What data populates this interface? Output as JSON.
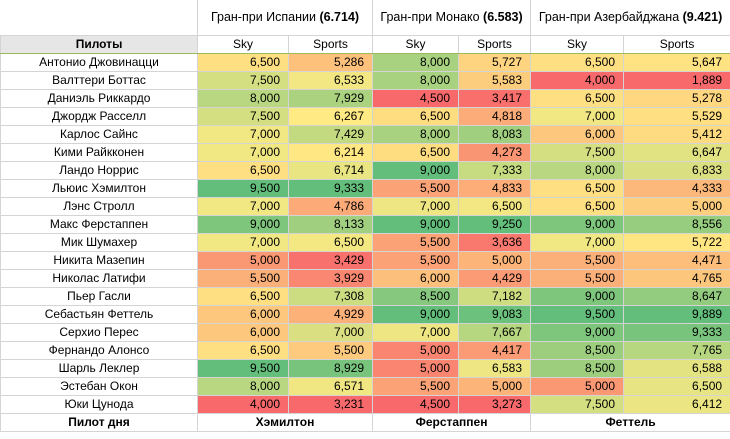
{
  "table": {
    "corner": "Пилоты",
    "races": [
      {
        "name": "Гран-при Испании",
        "score": "(6.714)"
      },
      {
        "name": "Гран-при Монако",
        "score": "(6.583)"
      },
      {
        "name": "Гран-при Азербайджана",
        "score": "(9.421)"
      }
    ],
    "subheaders": [
      "Sky",
      "Sports",
      "Sky",
      "Sports",
      "Sky",
      "Sports"
    ],
    "rows": [
      [
        "Антонио Джовинацци",
        "6,500",
        "5,286",
        "8,000",
        "5,727",
        "6,500",
        "5,647"
      ],
      [
        "Валттери Боттас",
        "7,500",
        "6,533",
        "8,000",
        "5,583",
        "4,000",
        "1,889"
      ],
      [
        "Даниэль Риккардо",
        "8,000",
        "7,929",
        "4,500",
        "3,417",
        "6,500",
        "5,278"
      ],
      [
        "Джордж Расселл",
        "7,500",
        "6,267",
        "6,500",
        "4,818",
        "7,000",
        "5,529"
      ],
      [
        "Карлос Сайнс",
        "7,000",
        "7,429",
        "8,000",
        "8,083",
        "6,000",
        "5,412"
      ],
      [
        "Кими Райкконен",
        "7,000",
        "6,214",
        "6,500",
        "4,273",
        "7,500",
        "6,647"
      ],
      [
        "Ландо Норрис",
        "6,500",
        "6,714",
        "9,000",
        "7,333",
        "8,000",
        "6,833"
      ],
      [
        "Льюис Хэмилтон",
        "9,500",
        "9,333",
        "5,500",
        "4,833",
        "6,500",
        "4,333"
      ],
      [
        "Лэнс Стролл",
        "7,000",
        "4,786",
        "7,000",
        "6,500",
        "6,500",
        "5,000"
      ],
      [
        "Макс Ферстаппен",
        "9,000",
        "8,133",
        "9,000",
        "9,250",
        "9,000",
        "8,556"
      ],
      [
        "Мик Шумахер",
        "7,000",
        "6,500",
        "5,500",
        "3,636",
        "7,000",
        "5,722"
      ],
      [
        "Никита Мазепин",
        "5,000",
        "3,429",
        "5,500",
        "5,000",
        "5,500",
        "4,471"
      ],
      [
        "Николас Латифи",
        "5,500",
        "3,929",
        "6,000",
        "4,429",
        "5,500",
        "4,765"
      ],
      [
        "Пьер Гасли",
        "6,500",
        "7,308",
        "8,500",
        "7,182",
        "9,000",
        "8,647"
      ],
      [
        "Себастьян Феттель",
        "6,000",
        "4,929",
        "9,000",
        "9,083",
        "9,500",
        "9,889"
      ],
      [
        "Серхио Перес",
        "6,000",
        "7,000",
        "7,000",
        "7,667",
        "9,000",
        "9,333"
      ],
      [
        "Фернандо Алонсо",
        "6,500",
        "5,500",
        "5,000",
        "4,417",
        "8,500",
        "7,765"
      ],
      [
        "Шарль Леклер",
        "9,500",
        "8,929",
        "5,000",
        "6,583",
        "8,500",
        "6,588"
      ],
      [
        "Эстебан Окон",
        "8,000",
        "6,571",
        "5,500",
        "5,000",
        "5,000",
        "6,500"
      ],
      [
        "Юки Цунода",
        "4,000",
        "3,231",
        "4,500",
        "3,273",
        "7,500",
        "6,412"
      ]
    ],
    "footer": {
      "label": "Пилот дня",
      "winners": [
        "Хэмилтон",
        "Ферстаппен",
        "Феттель"
      ]
    }
  }
}
